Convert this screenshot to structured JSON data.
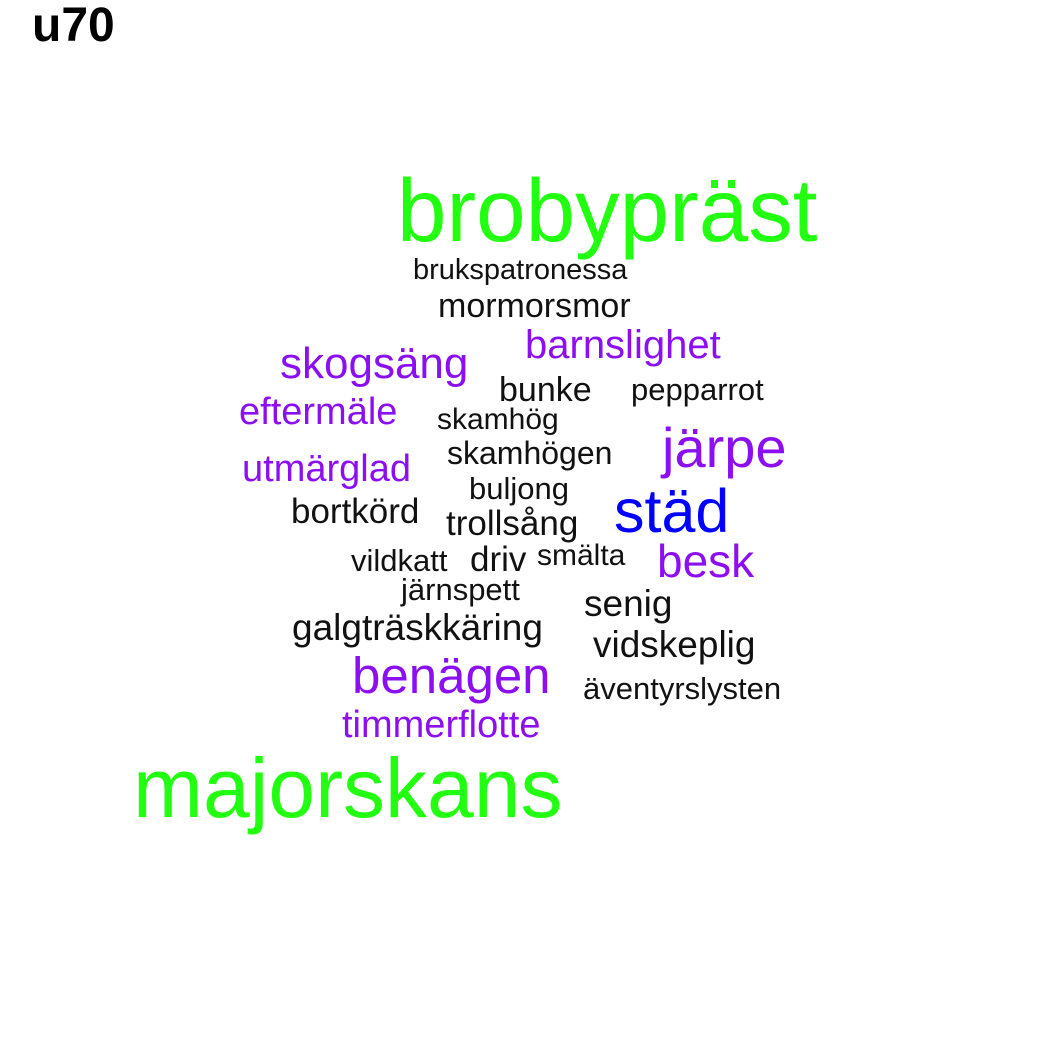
{
  "title": "u70",
  "colors": {
    "green": "#22ff11",
    "purple": "#8b0ff0",
    "blue": "#0000ff",
    "black": "#111111"
  },
  "words": [
    {
      "text": "brobypräst",
      "color": "#22ff11"
    },
    {
      "text": "brukspatronessa",
      "color": "#111111"
    },
    {
      "text": "mormorsmor",
      "color": "#111111"
    },
    {
      "text": "barnslighet",
      "color": "#8b0ff0"
    },
    {
      "text": "skogsäng",
      "color": "#8b0ff0"
    },
    {
      "text": "bunke",
      "color": "#111111"
    },
    {
      "text": "pepparrot",
      "color": "#111111"
    },
    {
      "text": "eftermäle",
      "color": "#8b0ff0"
    },
    {
      "text": "skamhög",
      "color": "#111111"
    },
    {
      "text": "järpe",
      "color": "#8b0ff0"
    },
    {
      "text": "skamhögen",
      "color": "#111111"
    },
    {
      "text": "utmärglad",
      "color": "#8b0ff0"
    },
    {
      "text": "buljong",
      "color": "#111111"
    },
    {
      "text": "städ",
      "color": "#0000ff"
    },
    {
      "text": "bortkörd",
      "color": "#111111"
    },
    {
      "text": "trollsång",
      "color": "#111111"
    },
    {
      "text": "vildkatt",
      "color": "#111111"
    },
    {
      "text": "driv",
      "color": "#111111"
    },
    {
      "text": "smälta",
      "color": "#111111"
    },
    {
      "text": "besk",
      "color": "#8b0ff0"
    },
    {
      "text": "järnspett",
      "color": "#111111"
    },
    {
      "text": "senig",
      "color": "#111111"
    },
    {
      "text": "galgträskkäring",
      "color": "#111111"
    },
    {
      "text": "vidskeplig",
      "color": "#111111"
    },
    {
      "text": "benägen",
      "color": "#8b0ff0"
    },
    {
      "text": "äventyrslysten",
      "color": "#111111"
    },
    {
      "text": "timmerflotte",
      "color": "#8b0ff0"
    },
    {
      "text": "majorskans",
      "color": "#22ff11"
    }
  ]
}
